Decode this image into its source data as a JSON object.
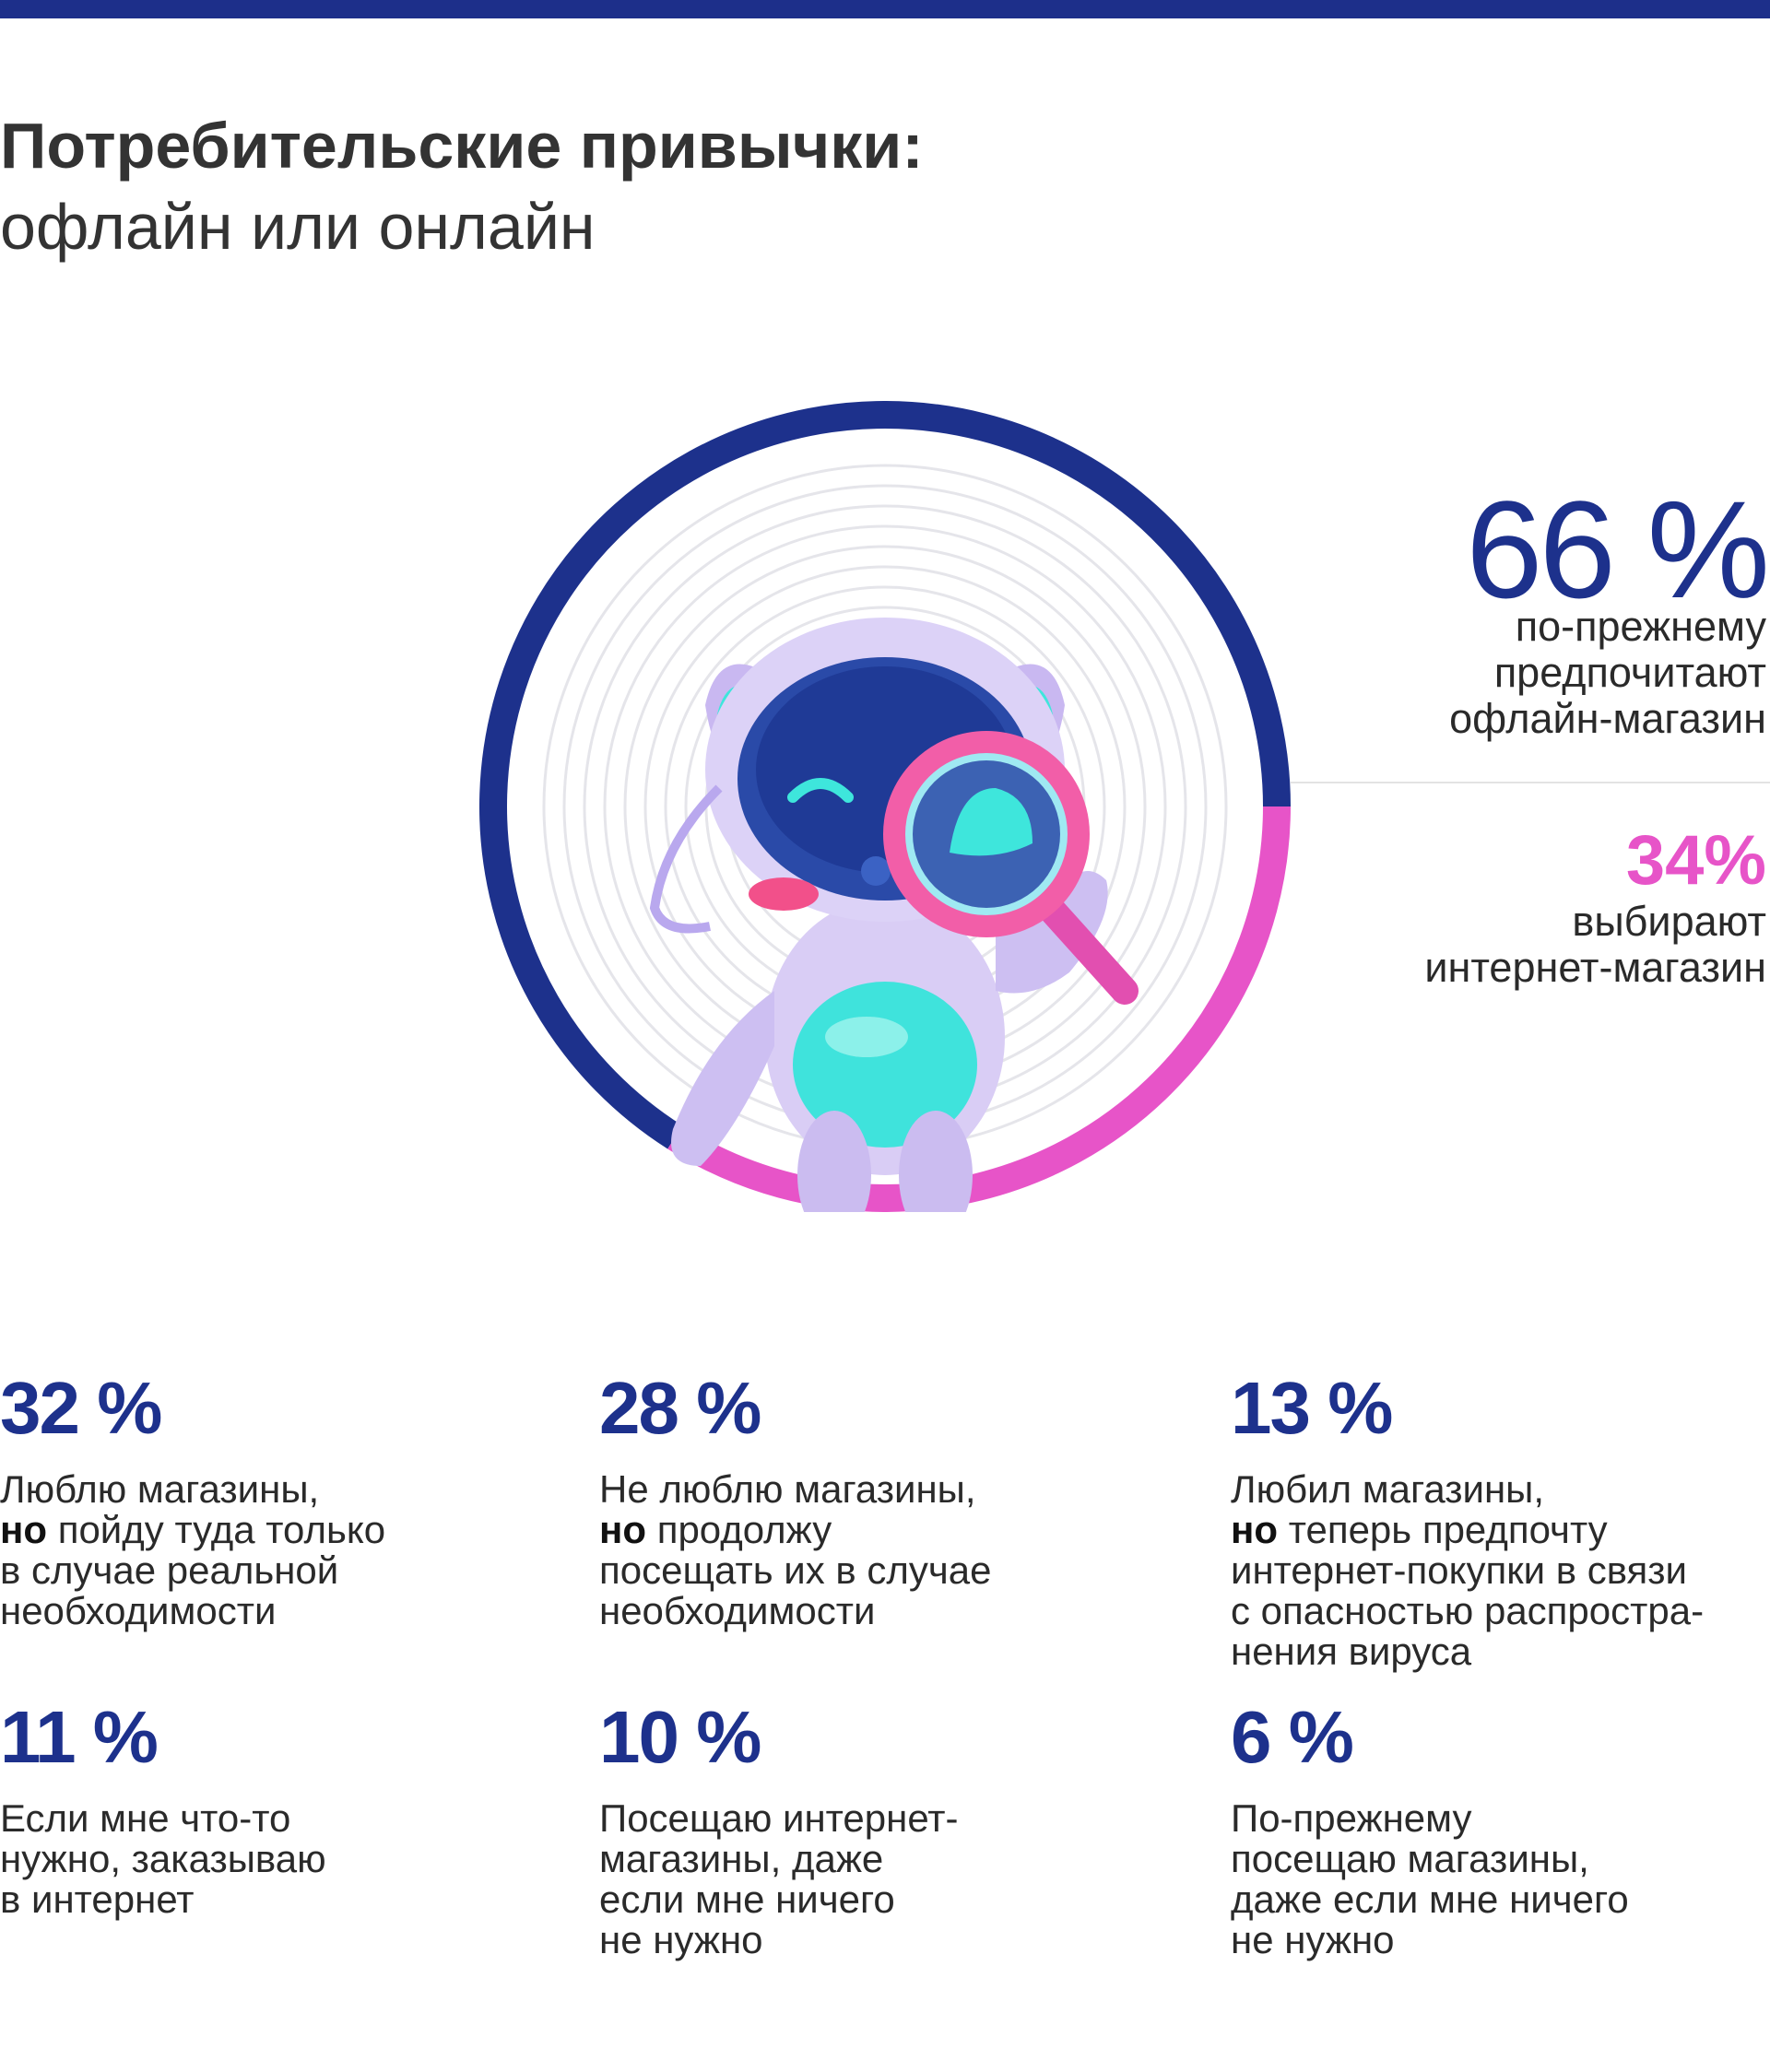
{
  "title": {
    "line1": "Потребительские привычки:",
    "line2": "офлайн или онлайн"
  },
  "colors": {
    "offline": "#1d318c",
    "online": "#e754c8",
    "stat": "#1d318c",
    "rings": "#e5e5ea"
  },
  "chart_data": {
    "type": "pie",
    "subtype": "donut",
    "values": [
      66,
      34
    ],
    "labels": [
      "66 %",
      "34%"
    ],
    "descriptions": [
      "по-прежнему\nпредпочитают\nофлайн-магазин",
      "выбирают\nинтернет-магазин"
    ]
  },
  "stats": [
    {
      "value": "32 %",
      "bold": "",
      "text": "Люблю магазины,",
      "bold2": "но",
      "text2": " пойду туда только\nв случае реальной\nнеобходимости"
    },
    {
      "value": "28 %",
      "bold": "",
      "text": "Не люблю магазины,",
      "bold2": "но",
      "text2": " продолжу\nпосещать их в случае\nнеобходимости"
    },
    {
      "value": "13 %",
      "bold": "",
      "text": "Любил магазины,",
      "bold2": "но",
      "text2": " теперь предпочту\nинтернет-покупки в связи\nс опасностью распростра-\nнения вируса"
    },
    {
      "value": "11 %",
      "bold": "",
      "text": "Если мне что-то\nнужно, заказываю\nв интернет",
      "bold2": "",
      "text2": ""
    },
    {
      "value": "10 %",
      "bold": "",
      "text": "Посещаю интернет-\nмагазины, даже\nесли мне ничего\nне нужно",
      "bold2": "",
      "text2": ""
    },
    {
      "value": "6 %",
      "bold": "",
      "text": "По-прежнему\nпосещаю магазины,\nдаже если мне ничего\nне нужно",
      "bold2": "",
      "text2": ""
    }
  ]
}
